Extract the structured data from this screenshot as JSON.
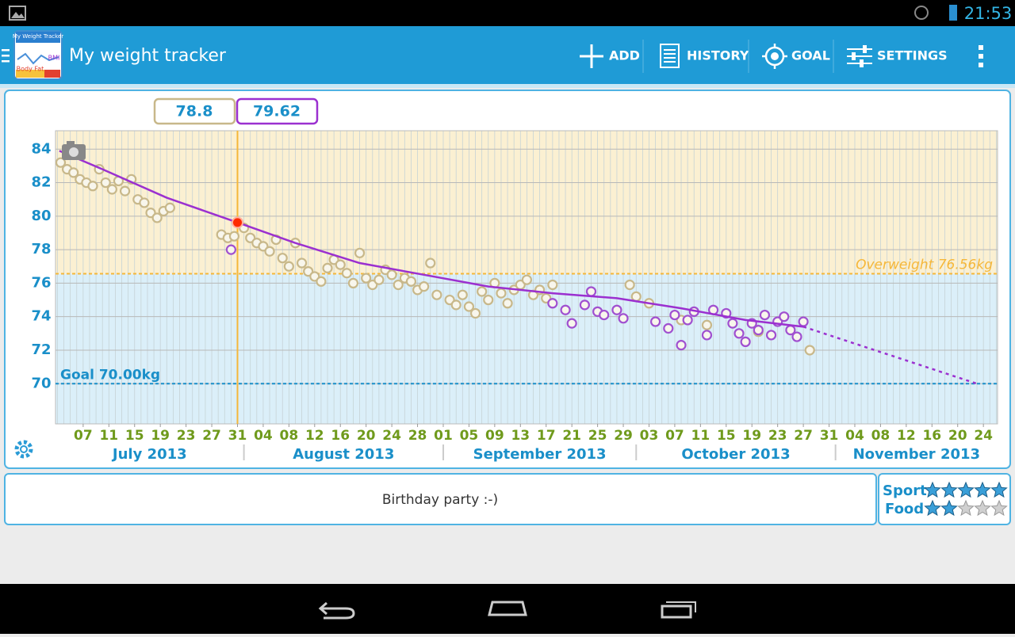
{
  "status_bar": {
    "time": "21:53"
  },
  "action_bar": {
    "title": "My weight tracker",
    "icon_text": [
      "My Weight Tracker",
      "BMI",
      "Body Fat"
    ],
    "actions": [
      "ADD",
      "HISTORY",
      "GOAL",
      "SETTINGS"
    ]
  },
  "chart_data": {
    "type": "scatter",
    "value_boxes": [
      {
        "text": "78.8",
        "color": "#c8b88a"
      },
      {
        "text": "79.62",
        "color": "#9b30d0"
      }
    ],
    "xlim": [
      2.7,
      149.2
    ],
    "ylim": [
      67.6,
      85.1
    ],
    "yticks": [
      70,
      72,
      74,
      76,
      78,
      80,
      82,
      84
    ],
    "xticks": [
      {
        "value": 7,
        "label": "07"
      },
      11,
      15,
      19,
      23,
      27,
      31,
      {
        "value": 35,
        "label": "04"
      },
      {
        "value": 39,
        "label": "08"
      },
      {
        "value": 43,
        "label": "12"
      },
      {
        "value": 47,
        "label": "16"
      },
      {
        "value": 51,
        "label": "20"
      },
      {
        "value": 55,
        "label": "24"
      },
      {
        "value": 59,
        "label": "28"
      },
      {
        "value": 63,
        "label": "01"
      },
      {
        "value": 67,
        "label": "05"
      },
      {
        "value": 71,
        "label": "09"
      },
      {
        "value": 75,
        "label": "13"
      },
      {
        "value": 79,
        "label": "17"
      },
      {
        "value": 83,
        "label": "21"
      },
      {
        "value": 87,
        "label": "25"
      },
      {
        "value": 91,
        "label": "29"
      },
      {
        "value": 95,
        "label": "03"
      },
      {
        "value": 99,
        "label": "07"
      },
      {
        "value": 103,
        "label": "11"
      },
      {
        "value": 107,
        "label": "15"
      },
      {
        "value": 111,
        "label": "19"
      },
      {
        "value": 115,
        "label": "23"
      },
      {
        "value": 119,
        "label": "27"
      },
      {
        "value": 123,
        "label": "31"
      },
      {
        "value": 127,
        "label": "04"
      },
      {
        "value": 131,
        "label": "08"
      },
      {
        "value": 135,
        "label": "12"
      },
      {
        "value": 139,
        "label": "16"
      },
      {
        "value": 143,
        "label": "20"
      },
      {
        "value": 147,
        "label": "24"
      }
    ],
    "months": [
      {
        "label": "July 2013",
        "start": 1,
        "end": 31
      },
      {
        "label": "August 2013",
        "start": 32,
        "end": 62
      },
      {
        "label": "September 2013",
        "start": 63,
        "end": 92
      },
      {
        "label": "October 2013",
        "start": 93,
        "end": 123
      },
      {
        "label": "November 2013",
        "start": 124,
        "end": 153
      }
    ],
    "reference_lines": [
      {
        "value": 70,
        "label": "Goal 70.00kg",
        "color": "#1a8fc9"
      },
      {
        "value": 76.56,
        "label": "Overweight 76.56kg",
        "color": "#f5b73a"
      }
    ],
    "selected": {
      "x": 31,
      "value": 79.62,
      "color": "#ff2a00",
      "line_color": "#f5b73a"
    },
    "series": [
      {
        "mark": "line",
        "color": "#9b30d0",
        "x": [
          3.3,
          10,
          20,
          31,
          40,
          50,
          60,
          70,
          80,
          90,
          100,
          110,
          119
        ],
        "values": [
          83.9,
          82.8,
          81.1,
          79.62,
          78.4,
          77.2,
          76.5,
          75.8,
          75.4,
          75.1,
          74.5,
          73.8,
          73.4
        ]
      },
      {
        "mark": "dashed",
        "color": "#9b30d0",
        "x": [
          119,
          146
        ],
        "values": [
          73.4,
          70.0
        ]
      },
      {
        "mark": "point",
        "color": "#c8b88a",
        "x": [
          3.5,
          4.5,
          5.5,
          6.5,
          7.5,
          8.5,
          9.5,
          10.5,
          11.5,
          12.5,
          13.5,
          14.5,
          15.5,
          16.5,
          17.5,
          18.5,
          19.5,
          20.5,
          28.5,
          29.5,
          30.5,
          32,
          33,
          34,
          35,
          36,
          37,
          38,
          39,
          40,
          41,
          42,
          43,
          44,
          45,
          46,
          47,
          48,
          49,
          50,
          51,
          52,
          53,
          54,
          55,
          56,
          57,
          58,
          59,
          60,
          61,
          62,
          64,
          65,
          66,
          67,
          68,
          69,
          70,
          71,
          72,
          73,
          74,
          75,
          76,
          77,
          78,
          79,
          80,
          92,
          93,
          95,
          100,
          104,
          112,
          120
        ],
        "values": [
          83.2,
          82.8,
          82.6,
          82.2,
          82.0,
          81.8,
          82.8,
          82.0,
          81.6,
          82.1,
          81.5,
          82.2,
          81.0,
          80.8,
          80.2,
          79.9,
          80.3,
          80.5,
          78.9,
          78.7,
          78.8,
          79.3,
          78.7,
          78.4,
          78.2,
          77.9,
          78.6,
          77.5,
          77.0,
          78.4,
          77.2,
          76.7,
          76.4,
          76.1,
          76.9,
          77.4,
          77.1,
          76.6,
          76.0,
          77.8,
          76.3,
          75.9,
          76.2,
          76.8,
          76.5,
          75.9,
          76.3,
          76.1,
          75.6,
          75.8,
          77.2,
          75.3,
          75.0,
          74.7,
          75.3,
          74.6,
          74.2,
          75.5,
          75.0,
          76.0,
          75.4,
          74.8,
          75.6,
          75.9,
          76.2,
          75.3,
          75.6,
          75.1,
          75.9,
          75.9,
          75.2,
          74.8,
          73.8,
          73.5,
          73.1,
          72.0
        ]
      },
      {
        "mark": "point",
        "color": "#a050d0",
        "x": [
          30,
          80,
          82,
          83,
          85,
          86,
          87,
          88,
          90,
          91,
          96,
          98,
          99,
          100,
          101,
          102,
          104,
          105,
          107,
          108,
          109,
          110,
          111,
          112,
          113,
          114,
          115,
          116,
          117,
          118,
          119
        ],
        "values": [
          78.0,
          74.8,
          74.4,
          73.6,
          74.7,
          75.5,
          74.3,
          74.1,
          74.4,
          73.9,
          73.7,
          73.3,
          74.1,
          72.3,
          73.8,
          74.3,
          72.9,
          74.4,
          74.2,
          73.6,
          73.0,
          72.5,
          73.6,
          73.2,
          74.1,
          72.9,
          73.7,
          74.0,
          73.2,
          72.8,
          73.7
        ]
      }
    ]
  },
  "note": "Birthday party :-)",
  "ratings": [
    {
      "label": "Sport",
      "value": 5
    },
    {
      "label": "Food",
      "value": 2
    }
  ],
  "rating_max": 5
}
